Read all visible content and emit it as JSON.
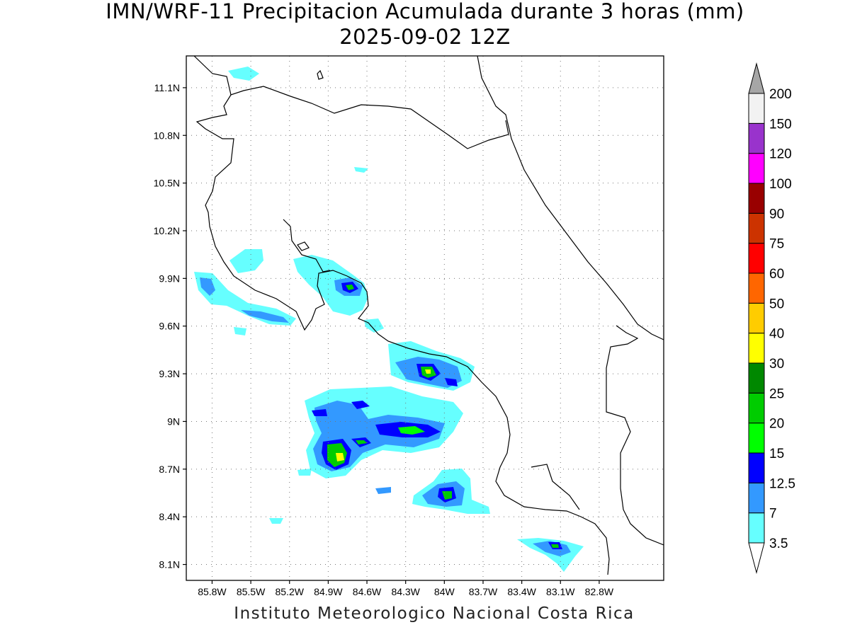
{
  "header": {
    "title": "IMN/WRF-11 Precipitacion Acumulada durante 3 horas (mm)",
    "subtitle": "2025-09-02 12Z"
  },
  "footer": {
    "credit": "Instituto Meteorologico Nacional Costa Rica"
  },
  "axes": {
    "lat_ticks": [
      "11.1N",
      "10.8N",
      "10.5N",
      "10.2N",
      "9.9N",
      "9.6N",
      "9.3N",
      "9N",
      "8.7N",
      "8.4N",
      "8.1N"
    ],
    "lon_ticks": [
      "85.8W",
      "85.5W",
      "85.2W",
      "84.9W",
      "84.6W",
      "84.3W",
      "84W",
      "83.7W",
      "83.4W",
      "83.1W",
      "82.8W"
    ],
    "lat_range": [
      8.0,
      11.3
    ],
    "lon_range": [
      -86.0,
      -82.3
    ],
    "grid": "dotted"
  },
  "colorbar": {
    "levels": [
      "3.5",
      "7",
      "12.5",
      "15",
      "20",
      "25",
      "30",
      "40",
      "50",
      "60",
      "75",
      "90",
      "100",
      "120",
      "150",
      "200"
    ],
    "colors": [
      "#66ffff",
      "#3399ff",
      "#0000ff",
      "#00ff00",
      "#00cc00",
      "#008800",
      "#ffff00",
      "#ffcc00",
      "#ff6600",
      "#ff0000",
      "#cc3300",
      "#990000",
      "#ff00ff",
      "#9933cc",
      "#f2f2f2",
      "#a6a6a6"
    ]
  }
}
